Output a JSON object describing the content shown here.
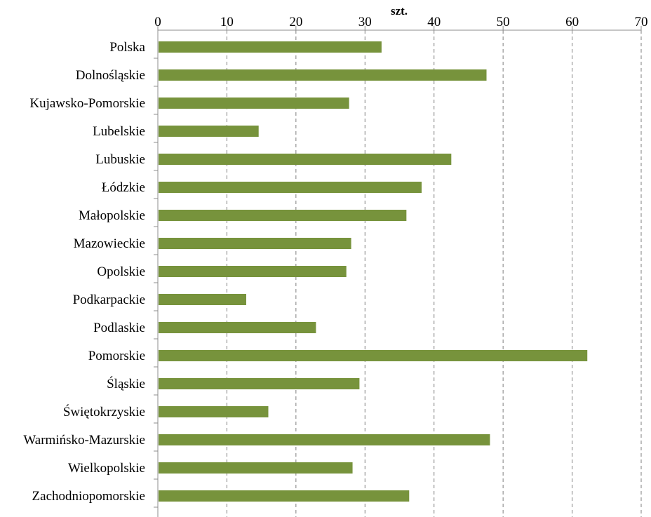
{
  "chart_data": {
    "type": "bar",
    "orientation": "horizontal",
    "unit_label": "szt.",
    "categories": [
      "Polska",
      "Dolnośląskie",
      "Kujawsko-Pomorskie",
      "Lubelskie",
      "Lubuskie",
      "Łódzkie",
      "Małopolskie",
      "Mazowieckie",
      "Opolskie",
      "Podkarpackie",
      "Podlaskie",
      "Pomorskie",
      "Śląskie",
      "Świętokrzyskie",
      "Warmińsko-Mazurskie",
      "Wielkopolskie",
      "Zachodniopomorskie"
    ],
    "values": [
      32.4,
      47.6,
      27.7,
      14.6,
      42.5,
      38.2,
      36.0,
      28.0,
      27.3,
      12.8,
      22.9,
      62.2,
      29.2,
      16.0,
      48.1,
      28.2,
      36.4
    ],
    "xlim": [
      0,
      70
    ],
    "xticks": [
      0,
      10,
      20,
      30,
      40,
      50,
      60,
      70
    ],
    "x_axis_position": "top",
    "grid": "vertical dashed",
    "bar_color": "#77933c",
    "legend": "none"
  }
}
